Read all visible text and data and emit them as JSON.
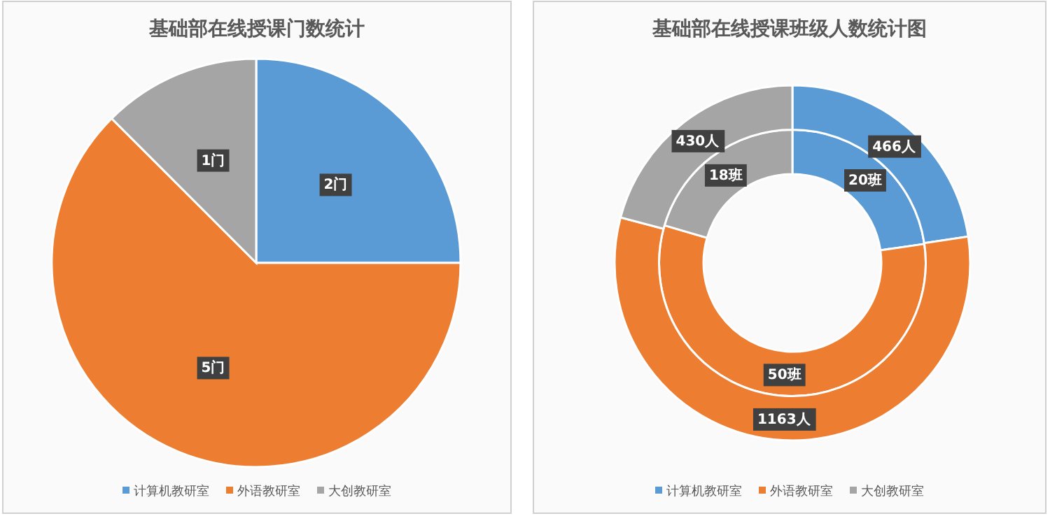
{
  "chart_data": [
    {
      "type": "pie",
      "title": "基础部在线授课门数统计",
      "categories": [
        "计算机教研室",
        "外语教研室",
        "大创教研室"
      ],
      "values": [
        2,
        5,
        1
      ],
      "colors": [
        "#5b9bd5",
        "#ed7d31",
        "#a5a5a5"
      ],
      "value_labels": [
        "2门",
        "5门",
        "1门"
      ],
      "legend": "bottom"
    },
    {
      "type": "donut",
      "title": "基础部在线授课班级人数统计图",
      "categories": [
        "计算机教研室",
        "外语教研室",
        "大创教研室"
      ],
      "series": [
        {
          "values": [
            20,
            50,
            18
          ],
          "colors": [
            "#5b9bd5",
            "#ed7d31",
            "#a5a5a5"
          ],
          "value_labels": [
            "20班",
            "50班",
            "18班"
          ]
        },
        {
          "values": [
            466,
            1163,
            430
          ],
          "colors": [
            "#5b9bd5",
            "#ed7d31",
            "#a5a5a5"
          ],
          "value_labels": [
            "466人",
            "1163人",
            "430人"
          ]
        }
      ],
      "legend": "bottom"
    }
  ]
}
